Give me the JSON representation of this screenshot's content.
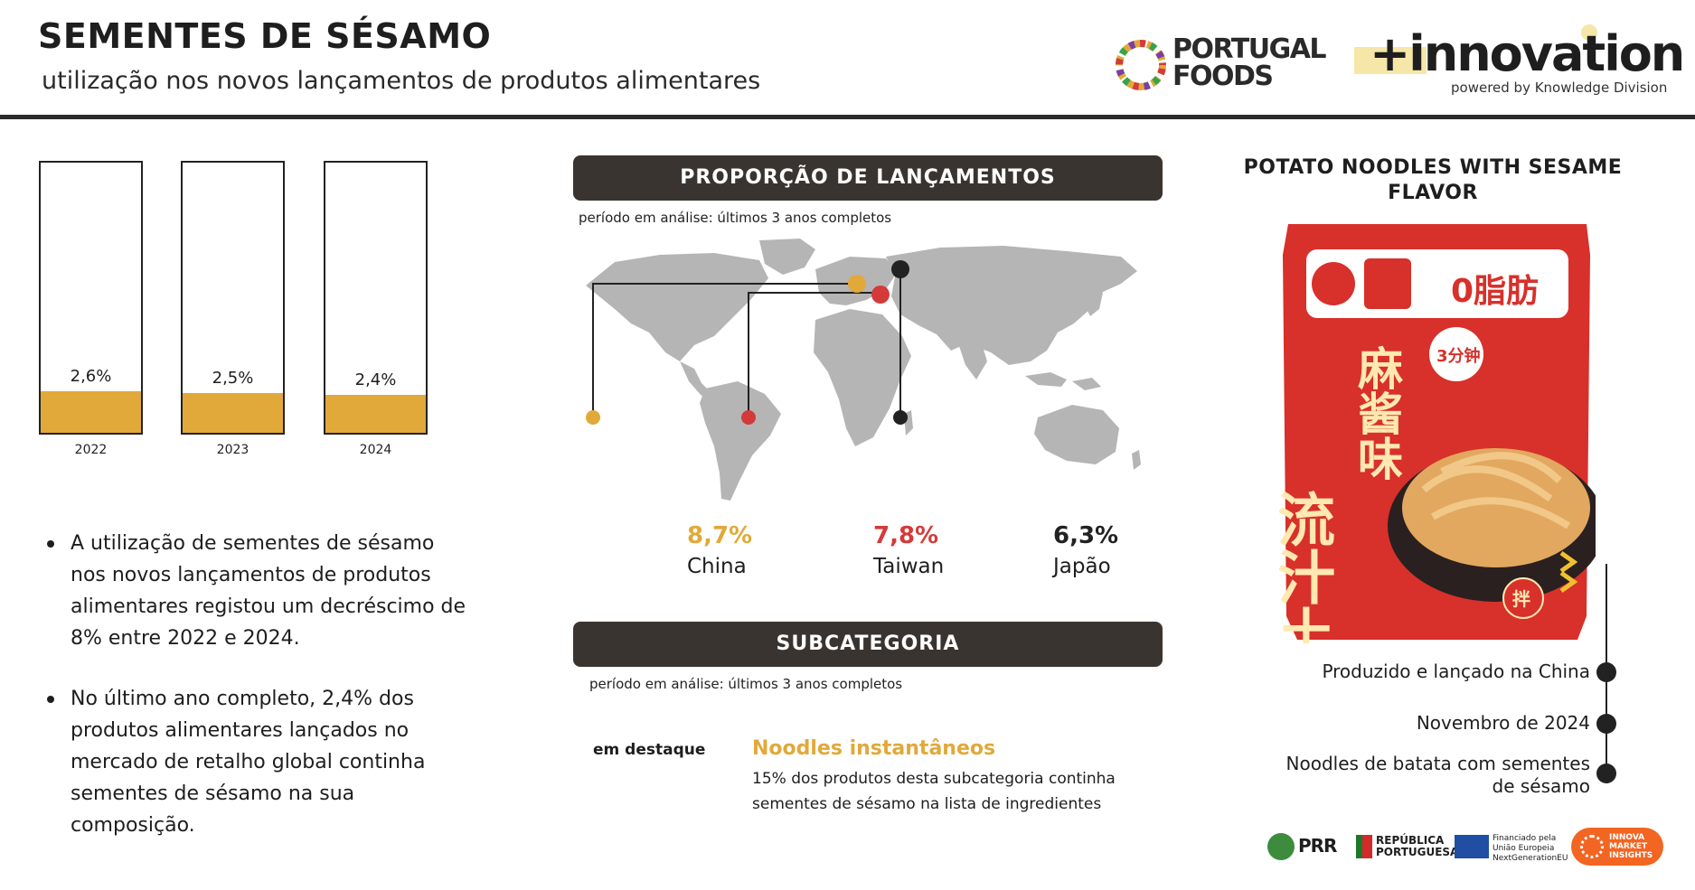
{
  "header": {
    "title": "SEMENTES DE SÉSAMO",
    "subtitle": "utilização nos novos lançamentos de produtos alimentares"
  },
  "logos": {
    "portugal_foods_line1": "PORTUGAL",
    "portugal_foods_line2": "FOODS",
    "innovation": "+innovation",
    "powered_by": "powered by Knowledge Division"
  },
  "chart_data": {
    "type": "bar",
    "categories": [
      "2022",
      "2023",
      "2024"
    ],
    "values": [
      2.6,
      2.5,
      2.4
    ],
    "value_labels": [
      "2,6%",
      "2,5%",
      "2,4%"
    ],
    "unit": "%",
    "ylim": [
      0,
      17
    ],
    "bar_color": "#e1a93a"
  },
  "bullets": [
    "A utilização de sementes de sésamo nos novos lançamentos de produtos alimentares registou um decréscimo de 8% entre 2022 e 2024.",
    "No último ano completo, 2,4% dos produtos alimentares lançados no mercado de retalho global continha sementes de sésamo na sua composição."
  ],
  "proporcao": {
    "title": "PROPORÇÃO DE LANÇAMENTOS",
    "period": "período em análise: últimos 3 anos completos",
    "stats": [
      {
        "value": "8,7%",
        "country": "China",
        "color": "#e1a93a"
      },
      {
        "value": "7,8%",
        "country": "Taiwan",
        "color": "#d43a3a"
      },
      {
        "value": "6,3%",
        "country": "Japão",
        "color": "#222222"
      }
    ]
  },
  "subcategoria": {
    "title": "SUBCATEGORIA",
    "period": "período em análise: últimos 3 anos completos",
    "label": "em destaque",
    "highlight_title": "Noodles instantâneos",
    "highlight_desc": "15% dos produtos desta subcategoria continha sementes de sésamo na lista de ingredientes"
  },
  "product": {
    "title": "POTATO NOODLES WITH SESAME FLAVOR",
    "timeline": [
      "Produzido e lançado na China",
      "Novembro de 2024",
      "Noodles de batata com sementes de sésamo"
    ],
    "package_text_top": "0脂肪",
    "package_text_main": "流汁土豆粉",
    "package_text_side": "麻酱味",
    "package_badge": "3分钟",
    "package_small": "拌"
  },
  "footer": {
    "prr": "PRR",
    "republica": "REPÚBLICA PORTUGUESA",
    "eu": "Financiado pela União Europeia NextGenerationEU",
    "innova": "INNOVA MARKET INSIGHTS"
  }
}
